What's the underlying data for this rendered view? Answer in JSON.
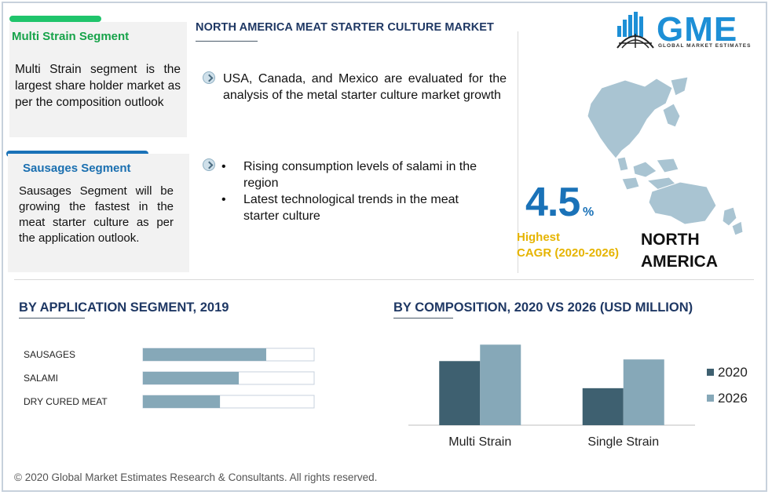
{
  "main_title": "NORTH AMERICA MEAT STARTER CULTURE  MARKET",
  "cards": {
    "multi": {
      "title": "Multi Strain Segment",
      "text": "Multi Strain segment is the largest share holder market as per the composition outlook",
      "bar_color": "#1fc46b",
      "title_color": "#17a34a"
    },
    "sausages": {
      "title": "Sausages Segment",
      "text": "Sausages Segment will be growing the fastest in the meat starter culture as per the application outlook.",
      "bar_color": "#1a72b8",
      "title_color": "#1a6fb0"
    }
  },
  "insights": {
    "para": "USA, Canada, and Mexico are evaluated for the analysis of the metal starter culture market growth",
    "bullets": [
      "Rising consumption levels of salami in the region",
      "Latest technological trends  in the meat starter culture"
    ]
  },
  "logo": {
    "text": "GME",
    "subtitle": "GLOBAL MARKET ESTIMATES",
    "icon": "globe-bars-icon"
  },
  "cagr": {
    "value": "4.5",
    "unit": "%",
    "label_line1": "Highest",
    "label_line2": "CAGR (2020-2026)"
  },
  "region": {
    "line1": "NORTH",
    "line2": "AMERICA",
    "map_icon": "asia-pacific-map-icon"
  },
  "app_section_title": "BY  APPLICATION SEGMENT, 2019",
  "comp_section_title": "BY COMPOSITION,  2020 VS 2026 (USD MILLION)",
  "chart_data": [
    {
      "type": "bar",
      "orientation": "horizontal",
      "categories": [
        "SAUSAGES",
        "SALAMI",
        "DRY CURED MEAT"
      ],
      "values": [
        0.72,
        0.56,
        0.45
      ],
      "xlim": [
        0,
        1
      ],
      "bar_color": "#86a8b8"
    },
    {
      "type": "bar",
      "categories": [
        "Multi Strain",
        "Single Strain"
      ],
      "series": [
        {
          "name": "2020",
          "values": [
            78,
            45
          ],
          "color": "#3e6070"
        },
        {
          "name": "2026",
          "values": [
            98,
            80
          ],
          "color": "#86a8b8"
        }
      ],
      "ylim": [
        0,
        105
      ],
      "legend": "right"
    }
  ],
  "footer": "© 2020 Global Market Estimates Research & Consultants. All rights reserved."
}
